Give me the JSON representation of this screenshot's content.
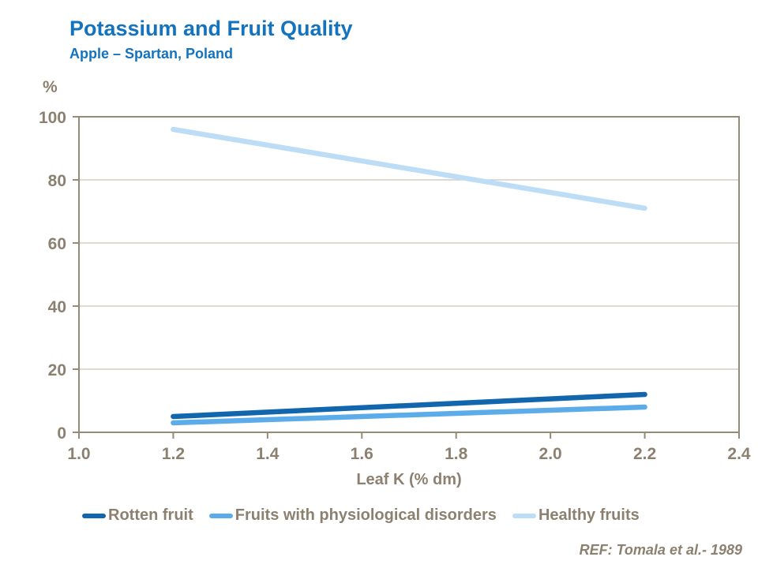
{
  "header": {
    "title": "Potassium and Fruit Quality",
    "subtitle": "Apple – Spartan, Poland",
    "title_color": "#1373BE"
  },
  "footer": {
    "reference": "REF: Tomala et al.- 1989"
  },
  "chart_data": {
    "type": "line",
    "title": "Potassium and Fruit Quality",
    "subtitle": "Apple – Spartan, Poland",
    "xlabel": "Leaf K (% dm)",
    "ylabel": "%",
    "xlim": [
      1.0,
      2.4
    ],
    "ylim": [
      0,
      100
    ],
    "x_tick_labels": [
      "1.0",
      "1.2",
      "1.4",
      "1.6",
      "1.8",
      "2.0",
      "2.2",
      "2.4"
    ],
    "y_tick_labels": [
      "0",
      "20",
      "40",
      "60",
      "80",
      "100"
    ],
    "grid": true,
    "legend_position": "bottom",
    "axis_text_color": "#8C8170",
    "grid_color": "#CBC4B8",
    "frame_color": "#948A75",
    "series": [
      {
        "name": "Rotten fruit",
        "color": "#1166AE",
        "x": [
          1.2,
          2.2
        ],
        "y": [
          5,
          12
        ]
      },
      {
        "name": "Fruits with physiological disorders",
        "color": "#5CACEA",
        "x": [
          1.2,
          2.2
        ],
        "y": [
          3,
          8
        ]
      },
      {
        "name": "Healthy fruits",
        "color": "#BDDDF6",
        "x": [
          1.2,
          2.2
        ],
        "y": [
          96,
          71
        ]
      }
    ]
  }
}
